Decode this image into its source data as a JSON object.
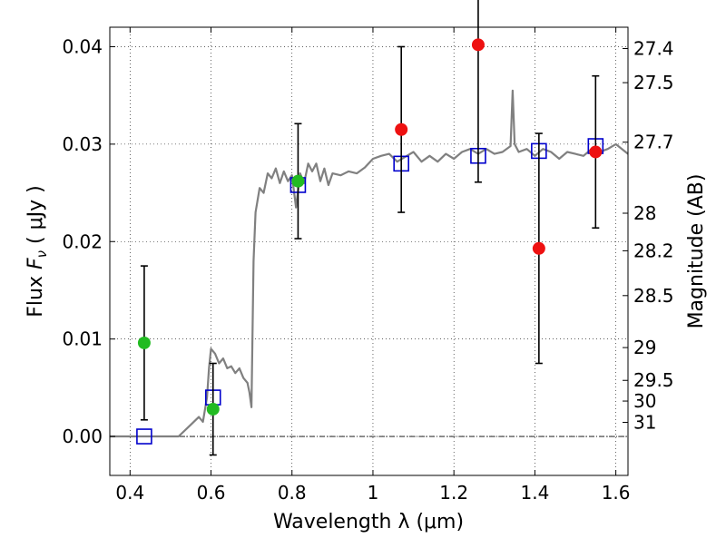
{
  "chart_data": {
    "type": "scatter",
    "title": "",
    "xlabel": "Wavelength  λ (μm)",
    "ylabel_parts": [
      "Flux  ",
      "F",
      "ν",
      "  (  μJy  )"
    ],
    "ylabel_right": "Magnitude (AB)",
    "xlim": [
      0.35,
      1.63
    ],
    "ylim": [
      -0.004,
      0.042
    ],
    "xticks": [
      0.4,
      0.6,
      0.8,
      1.0,
      1.2,
      1.4,
      1.6
    ],
    "xtick_labels": [
      "0.4",
      "0.6",
      "0.8",
      "1",
      "1.2",
      "1.4",
      "1.6"
    ],
    "yticks": [
      0.0,
      0.01,
      0.02,
      0.03,
      0.04
    ],
    "ytick_labels": [
      "0.00",
      "0.01",
      "0.02",
      "0.03",
      "0.04"
    ],
    "mag_ticks": [
      27.4,
      27.5,
      27.7,
      28,
      28.2,
      28.5,
      29,
      29.5,
      30,
      31
    ],
    "mag_tick_labels": [
      "27.4",
      "27.5",
      "27.7",
      "28",
      "28.2",
      "28.5",
      "29",
      "29.5",
      "30",
      "31"
    ],
    "grid": true,
    "colors": {
      "model": "#808080",
      "model_photometry": "#0000cc",
      "observed_optical": "#22bb22",
      "observed_nir": "#ee1111",
      "errorbar": "#000000",
      "zero_line": "#000000"
    },
    "series": [
      {
        "marker": "line",
        "color": "#808080",
        "x": [
          0.35,
          0.45,
          0.52,
          0.55,
          0.57,
          0.58,
          0.59,
          0.595,
          0.6,
          0.61,
          0.62,
          0.63,
          0.64,
          0.65,
          0.66,
          0.67,
          0.68,
          0.69,
          0.695,
          0.7,
          0.705,
          0.71,
          0.72,
          0.73,
          0.74,
          0.75,
          0.76,
          0.77,
          0.78,
          0.79,
          0.8,
          0.81,
          0.82,
          0.83,
          0.84,
          0.85,
          0.86,
          0.87,
          0.88,
          0.89,
          0.9,
          0.92,
          0.94,
          0.96,
          0.98,
          1.0,
          1.02,
          1.04,
          1.06,
          1.08,
          1.1,
          1.12,
          1.14,
          1.16,
          1.18,
          1.2,
          1.22,
          1.24,
          1.26,
          1.28,
          1.3,
          1.32,
          1.34,
          1.345,
          1.35,
          1.36,
          1.38,
          1.4,
          1.42,
          1.44,
          1.46,
          1.48,
          1.5,
          1.52,
          1.54,
          1.56,
          1.58,
          1.6,
          1.63
        ],
        "values": [
          0.0,
          0.0,
          0.0,
          0.0012,
          0.002,
          0.0015,
          0.004,
          0.007,
          0.009,
          0.0085,
          0.0075,
          0.008,
          0.007,
          0.0072,
          0.0065,
          0.007,
          0.006,
          0.0055,
          0.0045,
          0.003,
          0.018,
          0.023,
          0.0255,
          0.025,
          0.027,
          0.0265,
          0.0275,
          0.026,
          0.0272,
          0.0262,
          0.0268,
          0.0235,
          0.027,
          0.026,
          0.028,
          0.0272,
          0.028,
          0.0262,
          0.0275,
          0.0258,
          0.027,
          0.0268,
          0.0272,
          0.027,
          0.0276,
          0.0285,
          0.0288,
          0.029,
          0.0282,
          0.0287,
          0.0292,
          0.0282,
          0.0288,
          0.0282,
          0.029,
          0.0285,
          0.0292,
          0.0295,
          0.029,
          0.0295,
          0.029,
          0.0292,
          0.0298,
          0.0355,
          0.03,
          0.0292,
          0.0295,
          0.0288,
          0.0295,
          0.0292,
          0.0285,
          0.0292,
          0.029,
          0.0288,
          0.0295,
          0.0292,
          0.0295,
          0.03,
          0.029
        ]
      },
      {
        "marker": "square",
        "color": "#0000cc",
        "x": [
          0.435,
          0.605,
          0.815,
          1.07,
          1.26,
          1.41,
          1.55
        ],
        "values": [
          0.0,
          0.004,
          0.0258,
          0.028,
          0.0288,
          0.0293,
          0.0298
        ]
      },
      {
        "marker": "circle",
        "color": "#22bb22",
        "x": [
          0.435,
          0.605,
          0.815
        ],
        "values": [
          0.0096,
          0.0028,
          0.0262
        ],
        "yerr": [
          0.0079,
          0.0047,
          0.0059
        ]
      },
      {
        "marker": "circle",
        "color": "#ee1111",
        "x": [
          1.07,
          1.26,
          1.41,
          1.55
        ],
        "values": [
          0.0315,
          0.0402,
          0.0193,
          0.0292
        ],
        "yerr": [
          0.0085,
          0.0141,
          0.0118,
          0.0078
        ]
      }
    ]
  }
}
